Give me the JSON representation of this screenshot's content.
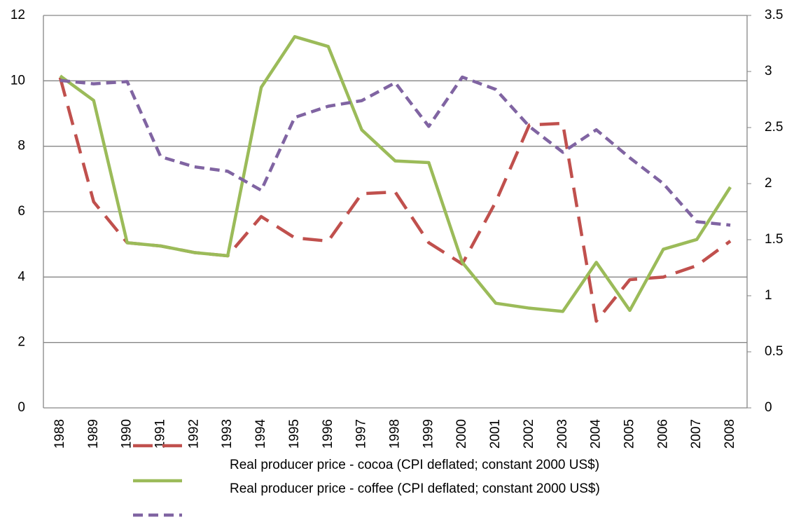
{
  "chart_data": {
    "type": "line",
    "categories": [
      "1988",
      "1989",
      "1990",
      "1991",
      "1992",
      "1993",
      "1994",
      "1995",
      "1996",
      "1997",
      "1998",
      "1999",
      "2000",
      "2001",
      "2002",
      "2003",
      "2004",
      "2005",
      "2006",
      "2007",
      "2008"
    ],
    "series": [
      {
        "name": "Real producer price - cocoa (CPI deflated; constant 2000 US$)",
        "color": "#c0504d",
        "dash": "28 14",
        "values": [
          10.1,
          6.3,
          5.05,
          4.95,
          4.75,
          4.65,
          5.85,
          5.2,
          5.1,
          6.55,
          6.6,
          5.05,
          4.4,
          6.3,
          8.65,
          8.7,
          2.65,
          3.92,
          4.0,
          4.35,
          5.1
        ]
      },
      {
        "name": "Real producer price - coffee (CPI deflated; constant 2000 US$)",
        "color": "#9bbb59",
        "values": [
          10.15,
          9.4,
          5.05,
          4.95,
          4.75,
          4.65,
          9.8,
          11.35,
          11.05,
          8.5,
          7.55,
          7.5,
          4.45,
          3.2,
          3.05,
          2.95,
          4.45,
          2.98,
          4.85,
          5.15,
          6.75
        ]
      },
      {
        "color": "#8064a2",
        "dash": "14 8",
        "axis": "y2",
        "values": [
          2.92,
          2.89,
          2.91,
          2.24,
          2.15,
          2.11,
          1.94,
          2.59,
          2.69,
          2.74,
          2.9,
          2.51,
          2.95,
          2.84,
          2.51,
          2.28,
          2.48,
          2.23,
          2.0,
          1.66,
          1.63
        ]
      }
    ],
    "ylim": [
      0,
      12
    ],
    "yticks": [
      0,
      2,
      4,
      6,
      8,
      10,
      12
    ],
    "y2lim": [
      0,
      3.5
    ],
    "y2ticks": [
      0,
      0.5,
      1,
      1.5,
      2,
      2.5,
      3,
      3.5
    ],
    "grid": true
  }
}
